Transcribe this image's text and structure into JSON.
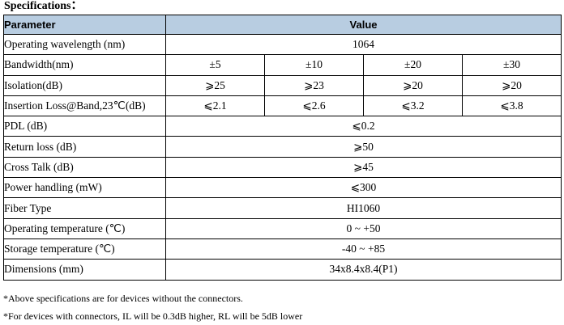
{
  "heading": "Specifications：",
  "table": {
    "header": {
      "parameter": "Parameter",
      "value": "Value"
    },
    "rows": [
      {
        "param": "Operating wavelength (nm)",
        "value": "1064"
      },
      {
        "param": "Bandwidth(nm)",
        "values": [
          "±5",
          "±10",
          "±20",
          "±30"
        ]
      },
      {
        "param": "Isolation(dB)",
        "values": [
          "⩾25",
          "⩾23",
          "⩾20",
          "⩾20"
        ]
      },
      {
        "param": "Insertion Loss@Band,23℃(dB)",
        "values": [
          "⩽2.1",
          "⩽2.6",
          "⩽3.2",
          "⩽3.8"
        ]
      },
      {
        "param": "PDL (dB)",
        "value": "⩽0.2"
      },
      {
        "param": "Return loss (dB)",
        "value": "⩾50"
      },
      {
        "param": "Cross Talk (dB)",
        "value": "⩾45"
      },
      {
        "param": "Power handling (mW)",
        "value": "⩽300"
      },
      {
        "param": "Fiber Type",
        "value": "HI1060"
      },
      {
        "param": "Operating temperature (℃)",
        "value": "0 ~ +50"
      },
      {
        "param": "Storage temperature (℃)",
        "value": "-40 ~ +85"
      },
      {
        "param": "Dimensions (mm)",
        "value": "34x8.4x8.4(P1)"
      }
    ]
  },
  "notes": [
    "*Above specifications are for devices without the connectors.",
    "*For devices with connectors, IL will be 0.3dB higher, RL will be 5dB lower"
  ],
  "colors": {
    "header_bg": "#b8cde1",
    "border": "#000000"
  }
}
